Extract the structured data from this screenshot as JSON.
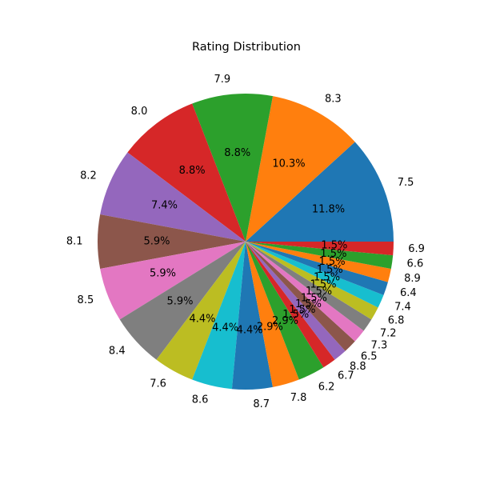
{
  "chart_data": {
    "type": "pie",
    "title": "Rating Distribution",
    "start_angle_deg": 0,
    "direction": "counterclockwise",
    "colors": [
      "#1f77b4",
      "#ff7f0e",
      "#2ca02c",
      "#d62728",
      "#9467bd",
      "#8c564b",
      "#e377c2",
      "#7f7f7f",
      "#bcbd22",
      "#17becf"
    ],
    "categories": [
      "7.5",
      "8.3",
      "7.9",
      "8.0",
      "8.2",
      "8.1",
      "8.5",
      "8.4",
      "7.6",
      "8.6",
      "8.7",
      "7.8",
      "6.2",
      "6.7",
      "8.8",
      "6.5",
      "7.3",
      "7.2",
      "6.8",
      "7.4",
      "6.4",
      "8.9",
      "6.6",
      "6.9"
    ],
    "values": [
      8,
      7,
      6,
      6,
      5,
      4,
      4,
      4,
      3,
      3,
      3,
      2,
      2,
      1,
      1,
      1,
      1,
      1,
      1,
      1,
      1,
      1,
      1,
      1
    ],
    "percent_labels": [
      "11.8%",
      "10.3%",
      "8.8%",
      "8.8%",
      "7.4%",
      "5.9%",
      "5.9%",
      "5.9%",
      "4.4%",
      "4.4%",
      "4.4%",
      "2.9%",
      "2.9%",
      "1.5%",
      "1.5%",
      "1.5%",
      "1.5%",
      "1.5%",
      "1.5%",
      "1.5%",
      "1.5%",
      "1.5%",
      "1.5%",
      "1.5%"
    ]
  }
}
